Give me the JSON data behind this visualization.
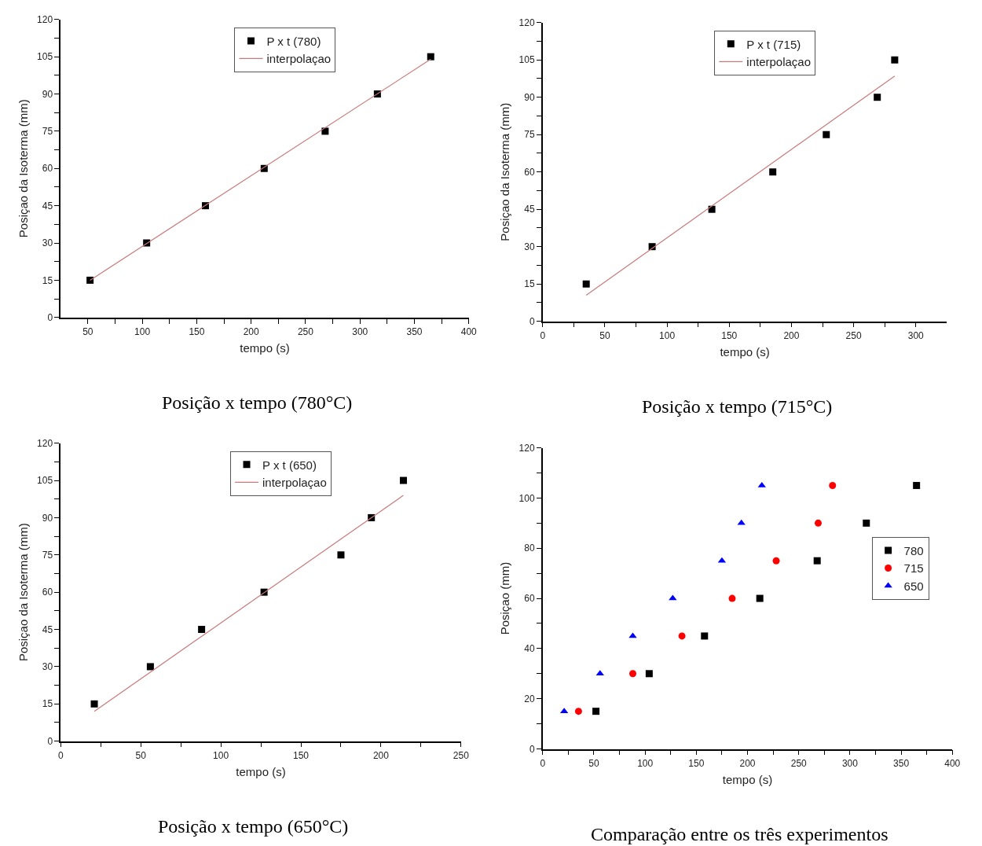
{
  "chart_data": [
    {
      "type": "scatter",
      "xlabel": "tempo (s)",
      "ylabel": "Posiçao da Isoterma (mm)",
      "annotations": [
        "Posição x tempo (780°C)"
      ],
      "legend": "top",
      "xlim": [
        25,
        400
      ],
      "ylim": [
        0,
        120
      ],
      "xticks": [
        50,
        {
          "value": 75,
          "label": null
        },
        100,
        {
          "value": 125,
          "label": null
        },
        150,
        {
          "value": 175,
          "label": null
        },
        200,
        {
          "value": 225,
          "label": null
        },
        250,
        {
          "value": 275,
          "label": null
        },
        300,
        {
          "value": 325,
          "label": null
        },
        350,
        {
          "value": 375,
          "label": null
        },
        400
      ],
      "yticks": [
        0,
        {
          "value": 7.5,
          "label": null
        },
        15,
        {
          "value": 22.5,
          "label": null
        },
        30,
        {
          "value": 37.5,
          "label": null
        },
        45,
        {
          "value": 52.5,
          "label": null
        },
        60,
        {
          "value": 67.5,
          "label": null
        },
        75,
        {
          "value": 82.5,
          "label": null
        },
        90,
        {
          "value": 97.5,
          "label": null
        },
        105,
        {
          "value": 112.5,
          "label": null
        },
        120
      ],
      "series": [
        {
          "name": "P x t (780)",
          "type": "scatter",
          "marker": "square",
          "color": "#000000",
          "x": [
            52,
            104,
            158,
            212,
            268,
            316,
            365
          ],
          "values": [
            15,
            30,
            45,
            60,
            75,
            90,
            105
          ]
        },
        {
          "name": "interpolaçao",
          "type": "line",
          "marker": "none",
          "color": "#c87a7a",
          "x": [
            52,
            365
          ],
          "values": [
            15,
            104
          ]
        }
      ]
    },
    {
      "type": "scatter",
      "xlabel": "tempo (s)",
      "ylabel": "Posiçao da Isoterma (mm)",
      "annotations": [
        "Posição x tempo (715°C)"
      ],
      "legend": "top",
      "xlim": [
        0,
        325
      ],
      "ylim": [
        0,
        120
      ],
      "xticks": [
        0,
        {
          "value": 25,
          "label": null
        },
        50,
        {
          "value": 75,
          "label": null
        },
        100,
        {
          "value": 125,
          "label": null
        },
        150,
        {
          "value": 175,
          "label": null
        },
        200,
        {
          "value": 225,
          "label": null
        },
        250,
        {
          "value": 275,
          "label": null
        },
        300
      ],
      "yticks": [
        0,
        {
          "value": 7.5,
          "label": null
        },
        15,
        {
          "value": 22.5,
          "label": null
        },
        30,
        {
          "value": 37.5,
          "label": null
        },
        45,
        {
          "value": 52.5,
          "label": null
        },
        60,
        {
          "value": 67.5,
          "label": null
        },
        75,
        {
          "value": 82.5,
          "label": null
        },
        90,
        {
          "value": 97.5,
          "label": null
        },
        105,
        {
          "value": 112.5,
          "label": null
        },
        120
      ],
      "series": [
        {
          "name": "P x t (715)",
          "type": "scatter",
          "marker": "square",
          "color": "#000000",
          "x": [
            35,
            88,
            136,
            185,
            228,
            269,
            283
          ],
          "values": [
            15,
            30,
            45,
            60,
            75,
            90,
            105
          ]
        },
        {
          "name": "interpolaçao",
          "type": "line",
          "marker": "none",
          "color": "#c87a7a",
          "x": [
            35,
            283
          ],
          "values": [
            10.5,
            98.5
          ]
        }
      ]
    },
    {
      "type": "scatter",
      "xlabel": "tempo (s)",
      "ylabel": "Posiçao da Isoterma (mm)",
      "annotations": [
        "Posição x tempo (650°C)"
      ],
      "legend": "top",
      "xlim": [
        0,
        250
      ],
      "ylim": [
        0,
        120
      ],
      "xticks": [
        0,
        {
          "value": 25,
          "label": null
        },
        50,
        {
          "value": 75,
          "label": null
        },
        100,
        {
          "value": 125,
          "label": null
        },
        150,
        {
          "value": 175,
          "label": null
        },
        200,
        {
          "value": 225,
          "label": null
        },
        250
      ],
      "yticks": [
        0,
        {
          "value": 7.5,
          "label": null
        },
        15,
        {
          "value": 22.5,
          "label": null
        },
        30,
        {
          "value": 37.5,
          "label": null
        },
        45,
        {
          "value": 52.5,
          "label": null
        },
        60,
        {
          "value": 67.5,
          "label": null
        },
        75,
        {
          "value": 82.5,
          "label": null
        },
        90,
        {
          "value": 97.5,
          "label": null
        },
        105,
        {
          "value": 112.5,
          "label": null
        },
        120
      ],
      "series": [
        {
          "name": "P x t (650)",
          "type": "scatter",
          "marker": "square",
          "color": "#000000",
          "x": [
            21,
            56,
            88,
            127,
            175,
            194,
            214
          ],
          "values": [
            15,
            30,
            45,
            60,
            75,
            90,
            105
          ]
        },
        {
          "name": "interpolaçao",
          "type": "line",
          "marker": "none",
          "color": "#c87a7a",
          "x": [
            21,
            214
          ],
          "values": [
            12,
            99
          ]
        }
      ]
    },
    {
      "type": "scatter",
      "xlabel": "tempo (s)",
      "ylabel": "Posiçao (mm)",
      "annotations": [
        "Comparação entre os três experimentos"
      ],
      "legend": "right",
      "xlim": [
        0,
        400
      ],
      "ylim": [
        0,
        120
      ],
      "xticks": [
        0,
        {
          "value": 25,
          "label": null
        },
        50,
        {
          "value": 75,
          "label": null
        },
        100,
        {
          "value": 125,
          "label": null
        },
        150,
        {
          "value": 175,
          "label": null
        },
        200,
        {
          "value": 225,
          "label": null
        },
        250,
        {
          "value": 275,
          "label": null
        },
        300,
        {
          "value": 325,
          "label": null
        },
        350,
        {
          "value": 375,
          "label": null
        },
        400
      ],
      "yticks": [
        0,
        {
          "value": 10,
          "label": null
        },
        20,
        {
          "value": 30,
          "label": null
        },
        40,
        {
          "value": 50,
          "label": null
        },
        60,
        {
          "value": 70,
          "label": null
        },
        80,
        {
          "value": 90,
          "label": null
        },
        100,
        {
          "value": 110,
          "label": null
        },
        120
      ],
      "series": [
        {
          "name": "780",
          "marker": "square",
          "color": "#000000",
          "x": [
            52,
            104,
            158,
            212,
            268,
            316,
            365
          ],
          "values": [
            15,
            30,
            45,
            60,
            75,
            90,
            105
          ]
        },
        {
          "name": "715",
          "marker": "circle",
          "color": "#ff0000",
          "x": [
            35,
            88,
            136,
            185,
            228,
            269,
            283
          ],
          "values": [
            15,
            30,
            45,
            60,
            75,
            90,
            105
          ]
        },
        {
          "name": "650",
          "marker": "triangle",
          "color": "#0000ff",
          "x": [
            21,
            56,
            88,
            127,
            175,
            194,
            214
          ],
          "values": [
            15,
            30,
            45,
            60,
            75,
            90,
            105
          ]
        }
      ]
    }
  ]
}
